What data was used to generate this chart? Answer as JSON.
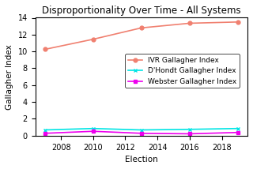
{
  "title": "Disproportionality Over Time - All Systems",
  "xlabel": "Election",
  "ylabel": "Gallagher Index",
  "elections": [
    2007,
    2010,
    2013,
    2016,
    2019
  ],
  "ivr": [
    10.25,
    11.45,
    12.8,
    13.35,
    13.5
  ],
  "dhondt": [
    0.68,
    0.85,
    0.68,
    0.75,
    0.85
  ],
  "webster": [
    0.28,
    0.52,
    0.28,
    0.22,
    0.38
  ],
  "ivr_color": "#f08070",
  "dhondt_color": "#00e5e5",
  "webster_color": "#ee00ee",
  "ivr_label": "IVR Gallagher Index",
  "dhondt_label": "D'Hondt Gallagher Index",
  "webster_label": "Webster Gallagher Index",
  "ylim": [
    0,
    14
  ],
  "yticks": [
    0,
    2,
    4,
    6,
    8,
    10,
    12,
    14
  ],
  "xticks": [
    2008,
    2010,
    2012,
    2014,
    2016,
    2018
  ],
  "bg_color": "#ffffff",
  "marker_size": 3.5,
  "linewidth": 1.2,
  "legend_fontsize": 6.5,
  "title_fontsize": 8.5,
  "axis_label_fontsize": 7.5,
  "tick_fontsize": 7
}
